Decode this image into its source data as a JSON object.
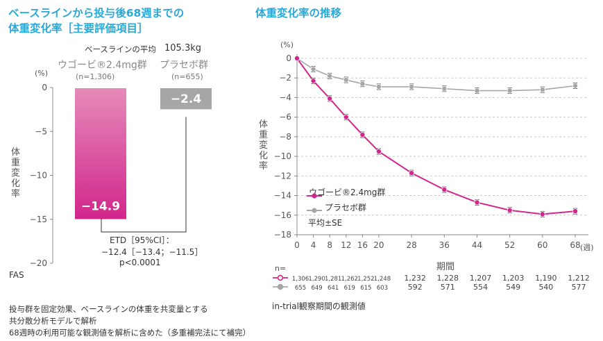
{
  "left": {
    "title_line1": "ベースラインから投与後68週までの",
    "title_line2": "体重変化率［主要評価項目］",
    "baseline_label": "ベースラインの平均",
    "baseline_value": "105.3kg",
    "pct_unit": "(%)",
    "ylabel": "体重変化率",
    "fas": "FAS",
    "etd_line1": "ETD［95%CI］：",
    "etd_line2": "−12.4［−13.4；−11.5］",
    "etd_line3": "p<0.0001"
  },
  "right": {
    "title": "体重変化率の推移",
    "pct_unit": "(%)",
    "ylabel": "体重変化率",
    "xlabel": "期間",
    "week_unit": "(週)",
    "n_label": "n=",
    "legend_drug": "ウゴービ®2.4mg群",
    "legend_placebo": "プラセボ群",
    "legend_note": "平均±SE",
    "caption": "in-trial観察期間の観測値"
  },
  "footnotes": [
    "投与群を固定効果、ベースラインの体重を共変量とする",
    "共分散分析モデルで解析",
    "68週時の利用可能な観測値を解析に含めた（多重補完法にて補完）"
  ],
  "colors": {
    "drug": "#d1268c",
    "placebo": "#a6a6a6",
    "title": "#2aa8d6"
  },
  "chart_data": [
    {
      "type": "bar",
      "categories": [
        "ウゴービ®2.4mg群",
        "プラセボ群"
      ],
      "category_n": [
        "(n=1,306)",
        "(n=655)"
      ],
      "values": [
        -14.9,
        -2.4
      ],
      "value_labels": [
        "−14.9",
        "−2.4"
      ],
      "ylim": [
        -20,
        0
      ],
      "yticks": [
        0,
        -5,
        -10,
        -15,
        -20
      ],
      "ytick_labels": [
        "0",
        "−5",
        "−10",
        "−15",
        "−20"
      ]
    },
    {
      "type": "line",
      "x": [
        0,
        4,
        8,
        12,
        16,
        20,
        28,
        36,
        44,
        52,
        60,
        68
      ],
      "xlim": [
        0,
        68
      ],
      "ylim": [
        -18,
        0
      ],
      "yticks": [
        0,
        -2,
        -4,
        -6,
        -8,
        -10,
        -12,
        -14,
        -16,
        -18
      ],
      "ytick_labels": [
        "0",
        "−2",
        "−4",
        "−6",
        "−8",
        "−10",
        "−12",
        "−14",
        "−16",
        "−18"
      ],
      "grid": "horizontal dashed",
      "legend_position": "bottom-left",
      "series": [
        {
          "name": "ウゴービ®2.4mg群",
          "values": [
            0,
            -2.3,
            -4.1,
            -6.0,
            -7.8,
            -9.5,
            -11.7,
            -13.4,
            -14.7,
            -15.5,
            -15.9,
            -15.6
          ],
          "n": [
            "1,306",
            "1,290",
            "1,281",
            "1,262",
            "1,252",
            "1,248",
            "1,232",
            "1,228",
            "1,207",
            "1,203",
            "1,190",
            "1,212"
          ]
        },
        {
          "name": "プラセボ群",
          "values": [
            0,
            -1.1,
            -1.8,
            -2.2,
            -2.6,
            -2.9,
            -2.9,
            -3.1,
            -3.3,
            -3.3,
            -3.2,
            -2.8
          ],
          "n": [
            "655",
            "649",
            "641",
            "619",
            "615",
            "603",
            "592",
            "571",
            "554",
            "549",
            "540",
            "577"
          ]
        }
      ]
    }
  ]
}
